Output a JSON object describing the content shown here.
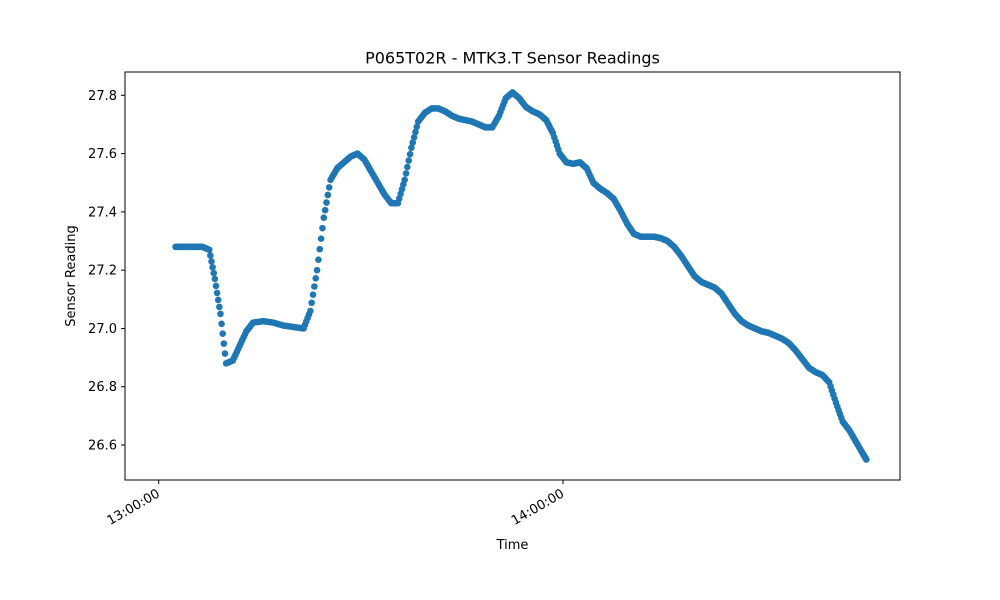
{
  "chart_data": {
    "type": "scatter",
    "title": "P065T02R - MTK3.T Sensor Readings",
    "xlabel": "Time",
    "ylabel": "Sensor Reading",
    "xlim": [
      "12:55:00",
      "14:50:00"
    ],
    "ylim": [
      26.48,
      27.88
    ],
    "grid": false,
    "series_color": "#1f77b4",
    "x_ticks": [
      "13:00:00",
      "14:00:00"
    ],
    "y_ticks": [
      "26.6",
      "26.8",
      "27.0",
      "27.2",
      "27.4",
      "27.6",
      "27.8"
    ],
    "points": [
      [
        "13:02:30",
        27.28
      ],
      [
        "13:03:30",
        27.28
      ],
      [
        "13:04:30",
        27.28
      ],
      [
        "13:05:30",
        27.28
      ],
      [
        "13:06:30",
        27.28
      ],
      [
        "13:07:30",
        27.27
      ],
      [
        "13:08:20",
        27.17
      ],
      [
        "13:09:10",
        27.05
      ],
      [
        "13:10:00",
        26.88
      ],
      [
        "13:11:00",
        26.89
      ],
      [
        "13:12:00",
        26.94
      ],
      [
        "13:13:00",
        26.99
      ],
      [
        "13:14:00",
        27.02
      ],
      [
        "13:15:30",
        27.025
      ],
      [
        "13:17:00",
        27.02
      ],
      [
        "13:18:30",
        27.01
      ],
      [
        "13:20:00",
        27.005
      ],
      [
        "13:21:30",
        27.0
      ],
      [
        "13:22:30",
        27.06
      ],
      [
        "13:23:30",
        27.2
      ],
      [
        "13:24:30",
        27.38
      ],
      [
        "13:25:30",
        27.51
      ],
      [
        "13:26:30",
        27.55
      ],
      [
        "13:27:30",
        27.57
      ],
      [
        "13:28:30",
        27.59
      ],
      [
        "13:29:30",
        27.6
      ],
      [
        "13:30:30",
        27.58
      ],
      [
        "13:31:30",
        27.54
      ],
      [
        "13:32:30",
        27.5
      ],
      [
        "13:33:30",
        27.46
      ],
      [
        "13:34:30",
        27.43
      ],
      [
        "13:35:30",
        27.43
      ],
      [
        "13:36:30",
        27.51
      ],
      [
        "13:37:30",
        27.62
      ],
      [
        "13:38:30",
        27.71
      ],
      [
        "13:39:30",
        27.74
      ],
      [
        "13:40:30",
        27.755
      ],
      [
        "13:41:30",
        27.755
      ],
      [
        "13:42:30",
        27.745
      ],
      [
        "13:43:30",
        27.73
      ],
      [
        "13:44:30",
        27.72
      ],
      [
        "13:45:30",
        27.715
      ],
      [
        "13:46:30",
        27.71
      ],
      [
        "13:47:30",
        27.7
      ],
      [
        "13:48:30",
        27.69
      ],
      [
        "13:49:30",
        27.69
      ],
      [
        "13:50:30",
        27.73
      ],
      [
        "13:51:30",
        27.79
      ],
      [
        "13:52:30",
        27.81
      ],
      [
        "13:53:30",
        27.79
      ],
      [
        "13:54:30",
        27.76
      ],
      [
        "13:55:30",
        27.745
      ],
      [
        "13:56:30",
        27.735
      ],
      [
        "13:57:30",
        27.715
      ],
      [
        "13:58:30",
        27.67
      ],
      [
        "13:59:30",
        27.6
      ],
      [
        "14:00:30",
        27.57
      ],
      [
        "14:01:30",
        27.565
      ],
      [
        "14:02:30",
        27.57
      ],
      [
        "14:03:30",
        27.55
      ],
      [
        "14:04:30",
        27.5
      ],
      [
        "14:05:30",
        27.48
      ],
      [
        "14:06:30",
        27.465
      ],
      [
        "14:07:30",
        27.445
      ],
      [
        "14:08:30",
        27.405
      ],
      [
        "14:09:30",
        27.36
      ],
      [
        "14:10:30",
        27.325
      ],
      [
        "14:11:30",
        27.315
      ],
      [
        "14:12:30",
        27.315
      ],
      [
        "14:13:30",
        27.315
      ],
      [
        "14:14:30",
        27.31
      ],
      [
        "14:15:30",
        27.3
      ],
      [
        "14:16:30",
        27.28
      ],
      [
        "14:17:30",
        27.25
      ],
      [
        "14:18:30",
        27.215
      ],
      [
        "14:19:30",
        27.18
      ],
      [
        "14:20:30",
        27.16
      ],
      [
        "14:21:30",
        27.15
      ],
      [
        "14:22:30",
        27.14
      ],
      [
        "14:23:30",
        27.12
      ],
      [
        "14:24:30",
        27.085
      ],
      [
        "14:25:30",
        27.05
      ],
      [
        "14:26:30",
        27.025
      ],
      [
        "14:27:30",
        27.01
      ],
      [
        "14:28:30",
        27.0
      ],
      [
        "14:29:30",
        26.99
      ],
      [
        "14:30:30",
        26.985
      ],
      [
        "14:31:30",
        26.975
      ],
      [
        "14:32:30",
        26.965
      ],
      [
        "14:33:30",
        26.95
      ],
      [
        "14:34:30",
        26.925
      ],
      [
        "14:35:30",
        26.895
      ],
      [
        "14:36:30",
        26.865
      ],
      [
        "14:37:30",
        26.85
      ],
      [
        "14:38:30",
        26.84
      ],
      [
        "14:39:30",
        26.815
      ],
      [
        "14:40:30",
        26.745
      ],
      [
        "14:41:30",
        26.68
      ],
      [
        "14:42:30",
        26.65
      ],
      [
        "14:43:30",
        26.61
      ],
      [
        "14:44:30",
        26.57
      ],
      [
        "14:45:00",
        26.55
      ]
    ]
  }
}
